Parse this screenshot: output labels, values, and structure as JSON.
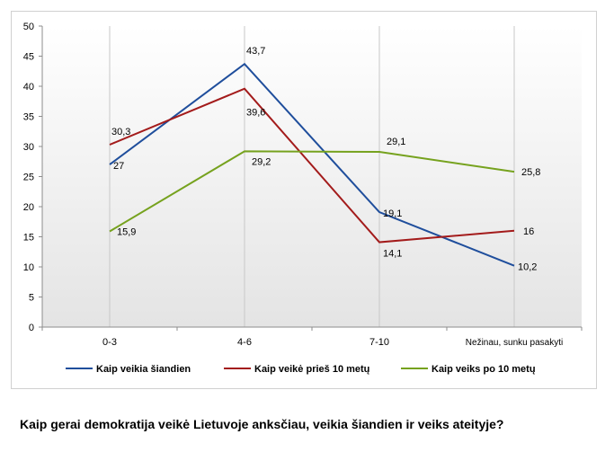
{
  "chart_data": {
    "type": "line",
    "categories": [
      "0-3",
      "4-6",
      "7-10",
      "Nežinau,  sunku pasakyti"
    ],
    "ylim": [
      0,
      50
    ],
    "yticks": [
      0,
      5,
      10,
      15,
      20,
      25,
      30,
      35,
      40,
      45,
      50
    ],
    "grid": "vertical lines at categories",
    "legend_position": "bottom",
    "series": [
      {
        "name": "Kaip veikia šiandien",
        "color": "#1f4e9c",
        "values": [
          27,
          43.7,
          19.1,
          10.2
        ],
        "labels": [
          "27",
          "43,7",
          "19,1",
          "10,2"
        ]
      },
      {
        "name": "Kaip veikė prieš 10 metų",
        "color": "#a31b1b",
        "values": [
          30.3,
          39.6,
          14.1,
          16
        ],
        "labels": [
          "30,3",
          "39,6",
          "14,1",
          "16"
        ]
      },
      {
        "name": "Kaip veiks po 10 metų",
        "color": "#76a21e",
        "values": [
          15.9,
          29.2,
          29.1,
          25.8
        ],
        "labels": [
          "15,9",
          "29,2",
          "29,1",
          "25,8"
        ]
      }
    ]
  },
  "caption": "Kaip gerai demokratija veikė Lietuvoje anksčiau, veikia šiandien ir veiks ateityje?"
}
